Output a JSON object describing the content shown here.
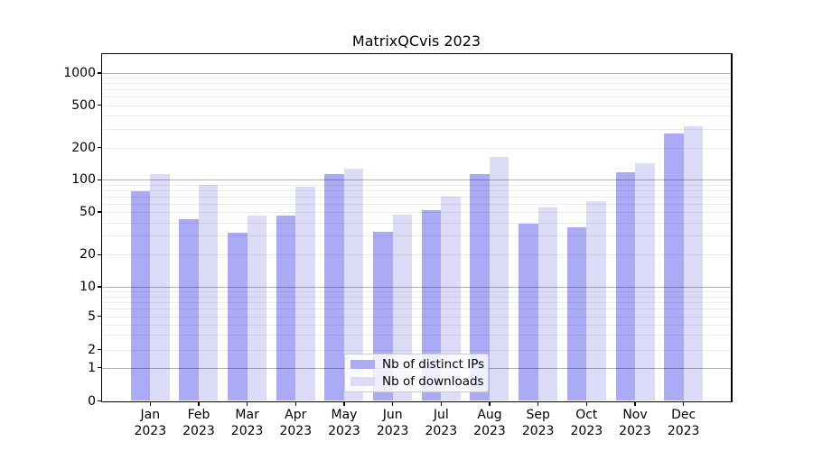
{
  "chart_data": {
    "type": "bar",
    "title": "MatrixQCvis 2023",
    "categories": [
      "Jan 2023",
      "Feb 2023",
      "Mar 2023",
      "Apr 2023",
      "May 2023",
      "Jun 2023",
      "Jul 2023",
      "Aug 2023",
      "Sep 2023",
      "Oct 2023",
      "Nov 2023",
      "Dec 2023"
    ],
    "category_month": [
      "Jan",
      "Feb",
      "Mar",
      "Apr",
      "May",
      "Jun",
      "Jul",
      "Aug",
      "Sep",
      "Oct",
      "Nov",
      "Dec"
    ],
    "category_year": "2023",
    "series": [
      {
        "name": "Nb of distinct IPs",
        "color": "#aaaaf5",
        "values": [
          78,
          43,
          32,
          46,
          114,
          33,
          52,
          114,
          39,
          36,
          118,
          270
        ]
      },
      {
        "name": "Nb of downloads",
        "color": "#dcdcf9",
        "values": [
          113,
          90,
          46,
          87,
          127,
          47,
          70,
          163,
          55,
          63,
          143,
          317
        ]
      }
    ],
    "xlabel": "",
    "ylabel": "",
    "yscale": "symlog",
    "yticks": [
      0,
      1,
      2,
      5,
      10,
      20,
      50,
      100,
      200,
      500,
      1000
    ],
    "ylim": [
      0,
      1500
    ],
    "grid": true,
    "grid_above_bars": true,
    "legend_position": "lower center",
    "colors": {
      "major_grid": "#b0b0b0",
      "minor_grid": "#ebebeb",
      "axis": "#000000",
      "background": "#ffffff"
    }
  }
}
